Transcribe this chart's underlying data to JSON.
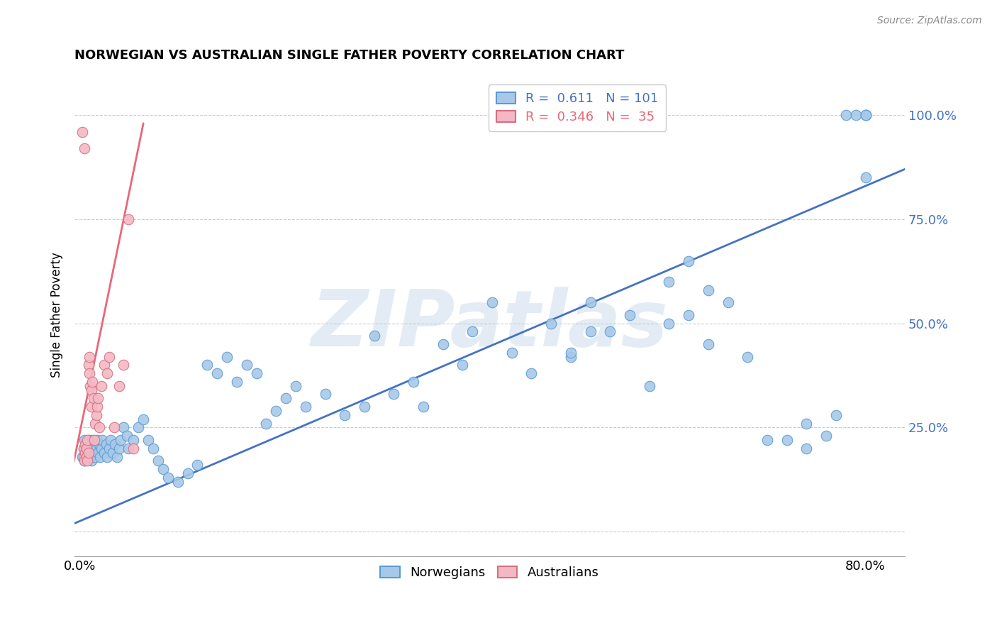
{
  "title": "NORWEGIAN VS AUSTRALIAN SINGLE FATHER POVERTY CORRELATION CHART",
  "source": "Source: ZipAtlas.com",
  "ylabel": "Single Father Poverty",
  "x_tick_positions": [
    0.0,
    0.1,
    0.2,
    0.3,
    0.4,
    0.5,
    0.6,
    0.7,
    0.8
  ],
  "x_tick_labels": [
    "0.0%",
    "",
    "",
    "",
    "",
    "",
    "",
    "",
    "80.0%"
  ],
  "y_tick_positions": [
    0.0,
    0.25,
    0.5,
    0.75,
    1.0
  ],
  "y_tick_labels_right": [
    "",
    "25.0%",
    "50.0%",
    "75.0%",
    "100.0%"
  ],
  "xlim": [
    -0.005,
    0.84
  ],
  "ylim": [
    -0.06,
    1.1
  ],
  "norwegian_color": "#a8c8e8",
  "norwegian_edge_color": "#5b9bd5",
  "australian_color": "#f4b8c4",
  "australian_edge_color": "#d47080",
  "trendline_norwegian_color": "#4472c4",
  "trendline_australian_color": "#e86878",
  "watermark": "ZIPatlas",
  "R_norwegian": "0.611",
  "N_norwegian": "101",
  "R_australian": "0.346",
  "N_australian": "35",
  "nor_x": [
    0.003,
    0.004,
    0.005,
    0.005,
    0.006,
    0.007,
    0.007,
    0.008,
    0.009,
    0.01,
    0.01,
    0.011,
    0.012,
    0.012,
    0.013,
    0.014,
    0.015,
    0.016,
    0.017,
    0.018,
    0.019,
    0.02,
    0.021,
    0.022,
    0.023,
    0.025,
    0.027,
    0.028,
    0.03,
    0.032,
    0.034,
    0.036,
    0.038,
    0.04,
    0.042,
    0.045,
    0.048,
    0.05,
    0.055,
    0.06,
    0.065,
    0.07,
    0.075,
    0.08,
    0.085,
    0.09,
    0.1,
    0.11,
    0.12,
    0.13,
    0.14,
    0.15,
    0.16,
    0.17,
    0.18,
    0.19,
    0.2,
    0.21,
    0.22,
    0.23,
    0.25,
    0.27,
    0.29,
    0.3,
    0.32,
    0.34,
    0.35,
    0.37,
    0.39,
    0.4,
    0.42,
    0.44,
    0.46,
    0.48,
    0.5,
    0.52,
    0.54,
    0.56,
    0.58,
    0.6,
    0.62,
    0.64,
    0.66,
    0.68,
    0.7,
    0.5,
    0.52,
    0.6,
    0.62,
    0.64,
    0.72,
    0.74,
    0.74,
    0.76,
    0.77,
    0.78,
    0.79,
    0.8,
    0.8,
    0.8,
    0.8
  ],
  "nor_y": [
    0.18,
    0.2,
    0.17,
    0.22,
    0.19,
    0.21,
    0.18,
    0.2,
    0.22,
    0.19,
    0.21,
    0.18,
    0.2,
    0.17,
    0.22,
    0.19,
    0.21,
    0.18,
    0.2,
    0.22,
    0.19,
    0.21,
    0.18,
    0.2,
    0.22,
    0.19,
    0.21,
    0.18,
    0.2,
    0.22,
    0.19,
    0.21,
    0.18,
    0.2,
    0.22,
    0.25,
    0.23,
    0.2,
    0.22,
    0.25,
    0.27,
    0.22,
    0.2,
    0.17,
    0.15,
    0.13,
    0.12,
    0.14,
    0.16,
    0.4,
    0.38,
    0.42,
    0.36,
    0.4,
    0.38,
    0.26,
    0.29,
    0.32,
    0.35,
    0.3,
    0.33,
    0.28,
    0.3,
    0.47,
    0.33,
    0.36,
    0.3,
    0.45,
    0.4,
    0.48,
    0.55,
    0.43,
    0.38,
    0.5,
    0.42,
    0.55,
    0.48,
    0.52,
    0.35,
    0.6,
    0.65,
    0.58,
    0.55,
    0.42,
    0.22,
    0.43,
    0.48,
    0.5,
    0.52,
    0.45,
    0.22,
    0.2,
    0.26,
    0.23,
    0.28,
    1.0,
    1.0,
    1.0,
    1.0,
    1.0,
    0.85
  ],
  "aus_x": [
    0.003,
    0.004,
    0.004,
    0.005,
    0.005,
    0.006,
    0.006,
    0.007,
    0.007,
    0.008,
    0.008,
    0.009,
    0.009,
    0.01,
    0.01,
    0.011,
    0.012,
    0.012,
    0.013,
    0.014,
    0.015,
    0.016,
    0.017,
    0.018,
    0.019,
    0.02,
    0.022,
    0.025,
    0.028,
    0.03,
    0.035,
    0.04,
    0.045,
    0.05,
    0.055
  ],
  "aus_y": [
    0.96,
    0.18,
    0.2,
    0.92,
    0.17,
    0.19,
    0.21,
    0.18,
    0.2,
    0.17,
    0.22,
    0.19,
    0.4,
    0.42,
    0.38,
    0.35,
    0.3,
    0.34,
    0.36,
    0.32,
    0.22,
    0.26,
    0.28,
    0.3,
    0.32,
    0.25,
    0.35,
    0.4,
    0.38,
    0.42,
    0.25,
    0.35,
    0.4,
    0.75,
    0.2
  ],
  "nor_trend_x": [
    -0.005,
    0.84
  ],
  "nor_trend_y": [
    0.02,
    0.87
  ],
  "aus_trend_x": [
    -0.01,
    0.065
  ],
  "aus_trend_y": [
    0.12,
    0.98
  ]
}
